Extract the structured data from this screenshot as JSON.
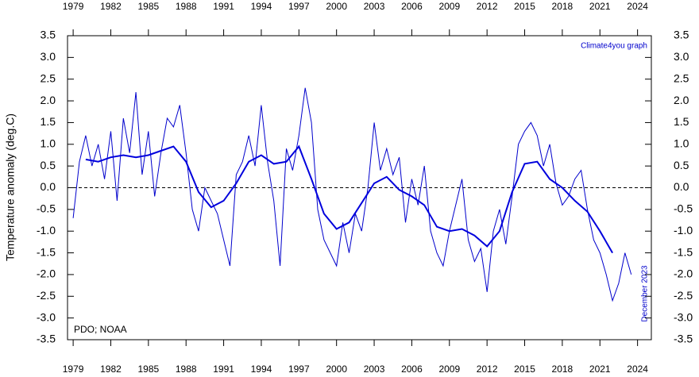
{
  "chart_data": {
    "type": "line",
    "y_label": "Temperature anomaly (deg.C)",
    "annotations": [
      "Climate4you graph",
      "PDO; NOAA",
      "December 2023"
    ],
    "xlim": [
      1978.55,
      2025.1
    ],
    "ylim": [
      -3.5,
      3.5
    ],
    "xticks": [
      1979,
      1982,
      1985,
      1988,
      1991,
      1994,
      1997,
      2000,
      2003,
      2006,
      2009,
      2012,
      2015,
      2018,
      2021,
      2024
    ],
    "yticks": [
      {
        "value": 3.5,
        "label": "3.5"
      },
      {
        "value": 3,
        "label": "3.0"
      },
      2.5,
      {
        "value": 2,
        "label": "2.0"
      },
      1.5,
      {
        "value": 1,
        "label": "1.0"
      },
      0.5,
      {
        "value": 0,
        "label": "0.0"
      },
      -0.5,
      {
        "value": -1,
        "label": "-1.0"
      },
      -1.5,
      {
        "value": -2,
        "label": "-2.0"
      },
      -2.5,
      {
        "value": -3,
        "label": "-3.0"
      },
      -3.5
    ],
    "zero_line": true,
    "series": [
      {
        "color": "#0000cc",
        "width": 1,
        "x": [
          1979.0,
          1979.5,
          1980.0,
          1980.5,
          1981.0,
          1981.5,
          1982.0,
          1982.5,
          1983.0,
          1983.5,
          1984.0,
          1984.5,
          1985.0,
          1985.5,
          1986.0,
          1986.5,
          1987.0,
          1987.5,
          1988.0,
          1988.5,
          1989.0,
          1989.5,
          1990.0,
          1990.5,
          1991.0,
          1991.5,
          1992.0,
          1992.5,
          1993.0,
          1993.5,
          1994.0,
          1994.5,
          1995.0,
          1995.5,
          1996.0,
          1996.5,
          1997.0,
          1997.5,
          1998.0,
          1998.5,
          1999.0,
          1999.5,
          2000.0,
          2000.5,
          2001.0,
          2001.5,
          2002.0,
          2002.5,
          2003.0,
          2003.5,
          2004.0,
          2004.5,
          2005.0,
          2005.5,
          2006.0,
          2006.5,
          2007.0,
          2007.5,
          2008.0,
          2008.5,
          2009.0,
          2009.5,
          2010.0,
          2010.5,
          2011.0,
          2011.5,
          2012.0,
          2012.5,
          2013.0,
          2013.5,
          2014.0,
          2014.5,
          2015.0,
          2015.5,
          2016.0,
          2016.5,
          2017.0,
          2017.5,
          2018.0,
          2018.5,
          2019.0,
          2019.5,
          2020.0,
          2020.5,
          2021.0,
          2021.5,
          2022.0,
          2022.5,
          2023.0,
          2023.5
        ],
        "values": [
          -0.7,
          0.6,
          1.2,
          0.5,
          1.0,
          0.2,
          1.3,
          -0.3,
          1.6,
          0.8,
          2.2,
          0.3,
          1.3,
          -0.2,
          0.8,
          1.6,
          1.4,
          1.9,
          0.8,
          -0.5,
          -1.0,
          0.0,
          -0.3,
          -0.6,
          -1.2,
          -1.8,
          0.3,
          0.6,
          1.2,
          0.5,
          1.9,
          0.6,
          -0.3,
          -1.8,
          0.9,
          0.4,
          1.2,
          2.3,
          1.5,
          -0.5,
          -1.2,
          -1.5,
          -1.8,
          -0.8,
          -1.5,
          -0.6,
          -1.0,
          0.0,
          1.5,
          0.4,
          0.9,
          0.3,
          0.7,
          -0.8,
          0.2,
          -0.4,
          0.5,
          -1.0,
          -1.5,
          -1.8,
          -1.0,
          -0.4,
          0.2,
          -1.2,
          -1.7,
          -1.4,
          -2.4,
          -1.0,
          -0.5,
          -1.3,
          -0.2,
          1.0,
          1.3,
          1.5,
          1.2,
          0.5,
          1.0,
          0.1,
          -0.4,
          -0.2,
          0.2,
          0.4,
          -0.5,
          -1.2,
          -1.5,
          -2.0,
          -2.6,
          -2.2,
          -1.5,
          -2.0
        ]
      },
      {
        "color": "#0000dd",
        "width": 2,
        "x": [
          1980,
          1981,
          1982,
          1983,
          1984,
          1985,
          1986,
          1987,
          1988,
          1989,
          1990,
          1991,
          1992,
          1993,
          1994,
          1995,
          1996,
          1997,
          1998,
          1999,
          2000,
          2001,
          2002,
          2003,
          2004,
          2005,
          2006,
          2007,
          2008,
          2009,
          2010,
          2011,
          2012,
          2013,
          2014,
          2015,
          2016,
          2017,
          2018,
          2019,
          2020,
          2021,
          2022
        ],
        "values": [
          0.65,
          0.6,
          0.7,
          0.75,
          0.7,
          0.75,
          0.85,
          0.95,
          0.6,
          -0.1,
          -0.45,
          -0.3,
          0.1,
          0.6,
          0.75,
          0.55,
          0.6,
          0.95,
          0.2,
          -0.6,
          -0.95,
          -0.8,
          -0.35,
          0.1,
          0.25,
          -0.05,
          -0.2,
          -0.4,
          -0.9,
          -1.0,
          -0.95,
          -1.1,
          -1.35,
          -1.0,
          -0.1,
          0.55,
          0.6,
          0.2,
          0.0,
          -0.3,
          -0.55,
          -1.0,
          -1.5
        ]
      }
    ]
  }
}
